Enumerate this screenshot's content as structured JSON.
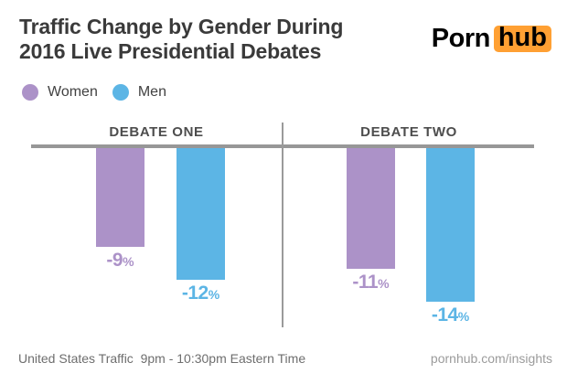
{
  "header": {
    "title_line1": "Traffic Change by Gender During",
    "title_line2": "2016 Live Presidential Debates",
    "logo": {
      "part1": "Porn",
      "part2": "hub",
      "bg_color": "#FFA033"
    }
  },
  "legend": {
    "items": [
      {
        "label": "Women",
        "color": "#AC92C8"
      },
      {
        "label": "Men",
        "color": "#5CB5E5"
      }
    ]
  },
  "chart_data": {
    "type": "bar",
    "title": "Traffic Change by Gender During 2016 Live Presidential Debates",
    "categories": [
      "DEBATE ONE",
      "DEBATE TWO"
    ],
    "series": [
      {
        "name": "Women",
        "color": "#AC92C8",
        "values": [
          -9,
          -11
        ]
      },
      {
        "name": "Men",
        "color": "#5CB5E5",
        "values": [
          -12,
          -14
        ]
      }
    ],
    "value_suffix": "%",
    "ylim": [
      -16,
      0
    ],
    "baseline": 0,
    "grid": false,
    "legend_position": "top-left",
    "axis_line_color": "#979797"
  },
  "footer": {
    "left": "United States Traffic  9pm - 10:30pm Eastern Time",
    "right": "pornhub.com/insights"
  }
}
